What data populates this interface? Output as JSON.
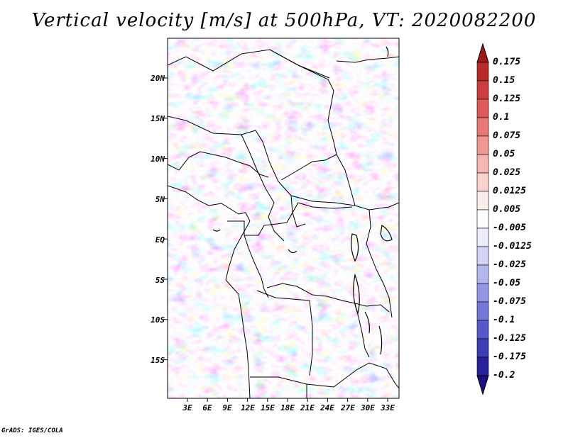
{
  "title": "Vertical velocity [m/s] at 500hPa, VT: 2020082200",
  "credit": "GrADS: IGES/COLA",
  "map": {
    "lat_labels": [
      "20N",
      "15N",
      "10N",
      "5N",
      "EQ",
      "5S",
      "10S",
      "15S"
    ],
    "lon_labels": [
      "3E",
      "6E",
      "9E",
      "12E",
      "15E",
      "18E",
      "21E",
      "24E",
      "27E",
      "30E",
      "33E"
    ]
  },
  "colorbar": {
    "labels": [
      "0.175",
      "0.15",
      "0.125",
      "0.1",
      "0.075",
      "0.05",
      "0.025",
      "0.0125",
      "0.005",
      "-0.005",
      "-0.0125",
      "-0.025",
      "-0.05",
      "-0.075",
      "-0.1",
      "-0.125",
      "-0.175",
      "-0.2"
    ],
    "colors": [
      "#a01818",
      "#b82a2a",
      "#cc3f3f",
      "#dc5a58",
      "#e77874",
      "#ef9894",
      "#f5b6b2",
      "#f9d3d0",
      "#fceceb",
      "#ffffff",
      "#ececfa",
      "#d2d3f5",
      "#b4b6ee",
      "#9496e4",
      "#7476d8",
      "#5759c8",
      "#3d3db6",
      "#28229a",
      "#1a0f80"
    ]
  }
}
